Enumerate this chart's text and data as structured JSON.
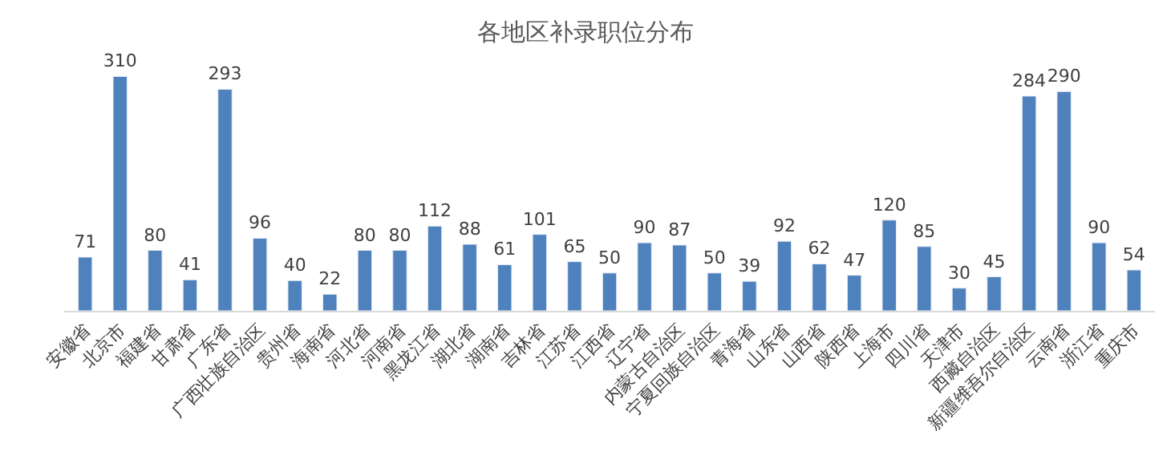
{
  "chart_data": {
    "type": "bar",
    "title": "各地区补录职位分布",
    "categories": [
      "安徽省",
      "北京市",
      "福建省",
      "甘肃省",
      "广东省",
      "广西壮族自治区",
      "贵州省",
      "海南省",
      "河北省",
      "河南省",
      "黑龙江省",
      "湖北省",
      "湖南省",
      "吉林省",
      "江苏省",
      "江西省",
      "辽宁省",
      "内蒙古自治区",
      "宁夏回族自治区",
      "青海省",
      "山东省",
      "山西省",
      "陕西省",
      "上海市",
      "四川省",
      "天津市",
      "西藏自治区",
      "新疆维吾尔自治区",
      "云南省",
      "浙江省",
      "重庆市"
    ],
    "values": [
      71,
      310,
      80,
      41,
      293,
      96,
      40,
      22,
      80,
      80,
      112,
      88,
      61,
      101,
      65,
      50,
      90,
      87,
      50,
      39,
      92,
      62,
      47,
      120,
      85,
      30,
      45,
      284,
      290,
      90,
      54
    ],
    "color": "#4f81bd",
    "data_labels": true
  }
}
